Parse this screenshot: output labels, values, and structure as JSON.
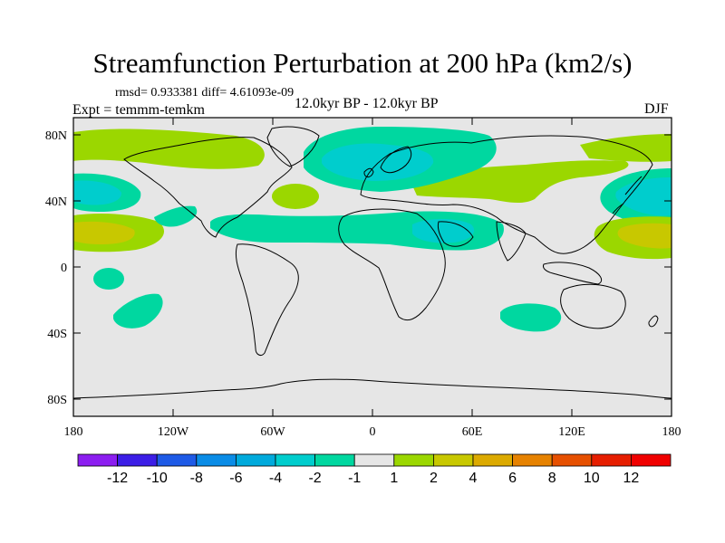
{
  "title": "Streamfunction Perturbation at 200 hPa (km2/s)",
  "stats_line": "rmsd= 0.933381 diff= 4.61093e-09",
  "left_label": "Expt = temmm-temkm",
  "center_label": "12.0kyr BP - 12.0kyr BP",
  "right_label": "DJF",
  "map": {
    "lat_labels": [
      "80N",
      "40N",
      "0",
      "40S",
      "80S"
    ],
    "lon_labels": [
      "180",
      "120W",
      "60W",
      "0",
      "60E",
      "120E",
      "180"
    ],
    "background_color": "#e6e6e6",
    "contours": [
      {
        "region": "North Pacific / Arctic",
        "level": "1 to 2",
        "color": "#9bd700"
      },
      {
        "region": "Arctic / Northern Europe",
        "level": "-1 to -2",
        "color": "#00d7a0"
      },
      {
        "region": "Arctic / Northern Europe core",
        "level": "-2 to -4",
        "color": "#00cdcd"
      },
      {
        "region": "Eurasia band",
        "level": "1 to 2",
        "color": "#9bd700"
      },
      {
        "region": "North Atlantic",
        "level": "1 to 2",
        "color": "#9bd700"
      },
      {
        "region": "Subtropical Atlantic / Africa band",
        "level": "-1 to -2",
        "color": "#00d7a0"
      },
      {
        "region": "Middle East core",
        "level": "-2 to -4",
        "color": "#00cdcd"
      },
      {
        "region": "Eastern North Pacific",
        "level": "-1 to -2",
        "color": "#00d7a0"
      },
      {
        "region": "Eastern North Pacific core",
        "level": "-2 to -4",
        "color": "#00cdcd"
      },
      {
        "region": "Western North Pacific",
        "level": "-1 to -2",
        "color": "#00d7a0"
      },
      {
        "region": "Western North Pacific core",
        "level": "-2 to -4",
        "color": "#00cdcd"
      },
      {
        "region": "Subtropical East Pacific",
        "level": "1 to 2",
        "color": "#9bd700"
      },
      {
        "region": "Subtropical East Pacific core",
        "level": "2 to 4",
        "color": "#c8c800"
      },
      {
        "region": "Subtropical West Pacific",
        "level": "1 to 2",
        "color": "#9bd700"
      },
      {
        "region": "Subtropical West Pacific core",
        "level": "2 to 4",
        "color": "#c8c800"
      },
      {
        "region": "South Pacific",
        "level": "-1 to -2",
        "color": "#00d7a0"
      },
      {
        "region": "Southern Indian Ocean",
        "level": "-1 to -2",
        "color": "#00d7a0"
      }
    ]
  },
  "colorbar": {
    "labels": [
      "-12",
      "-10",
      "-8",
      "-6",
      "-4",
      "-2",
      "-1",
      "1",
      "2",
      "4",
      "6",
      "8",
      "10",
      "12"
    ],
    "colors": [
      "#8c1ef0",
      "#3c1ee6",
      "#1e5ae6",
      "#0a8ce6",
      "#00aadc",
      "#00cdcd",
      "#00d7a0",
      "#e6e6e6",
      "#9bd700",
      "#c8c800",
      "#dcaa00",
      "#e68200",
      "#e65000",
      "#e61e00",
      "#f00000"
    ]
  }
}
